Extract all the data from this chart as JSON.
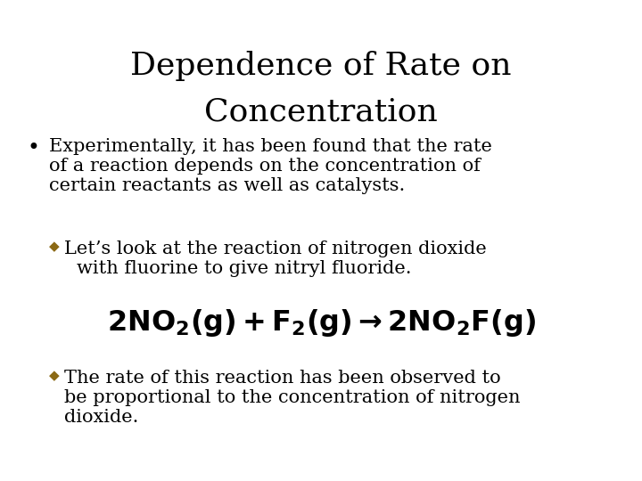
{
  "title_line1": "Dependence of Rate on",
  "title_line2": "Concentration",
  "title_fontsize": 26,
  "title_font": "serif",
  "body_fontsize": 15,
  "body_font": "serif",
  "bullet_color": "#000000",
  "diamond_color": "#8B6914",
  "background_color": "#ffffff",
  "bullet1_line1": "Experimentally, it has been found that the rate",
  "bullet1_line2": "of a reaction depends on the concentration of",
  "bullet1_line3": "certain reactants as well as catalysts.",
  "sub_bullet1_line1": "Let’s look at the reaction of nitrogen dioxide",
  "sub_bullet1_line2": "with fluorine to give nitryl fluoride.",
  "sub_bullet2_line1": "The rate of this reaction has been observed to",
  "sub_bullet2_line2": "be proportional to the concentration of nitrogen",
  "sub_bullet2_line3": "dioxide."
}
